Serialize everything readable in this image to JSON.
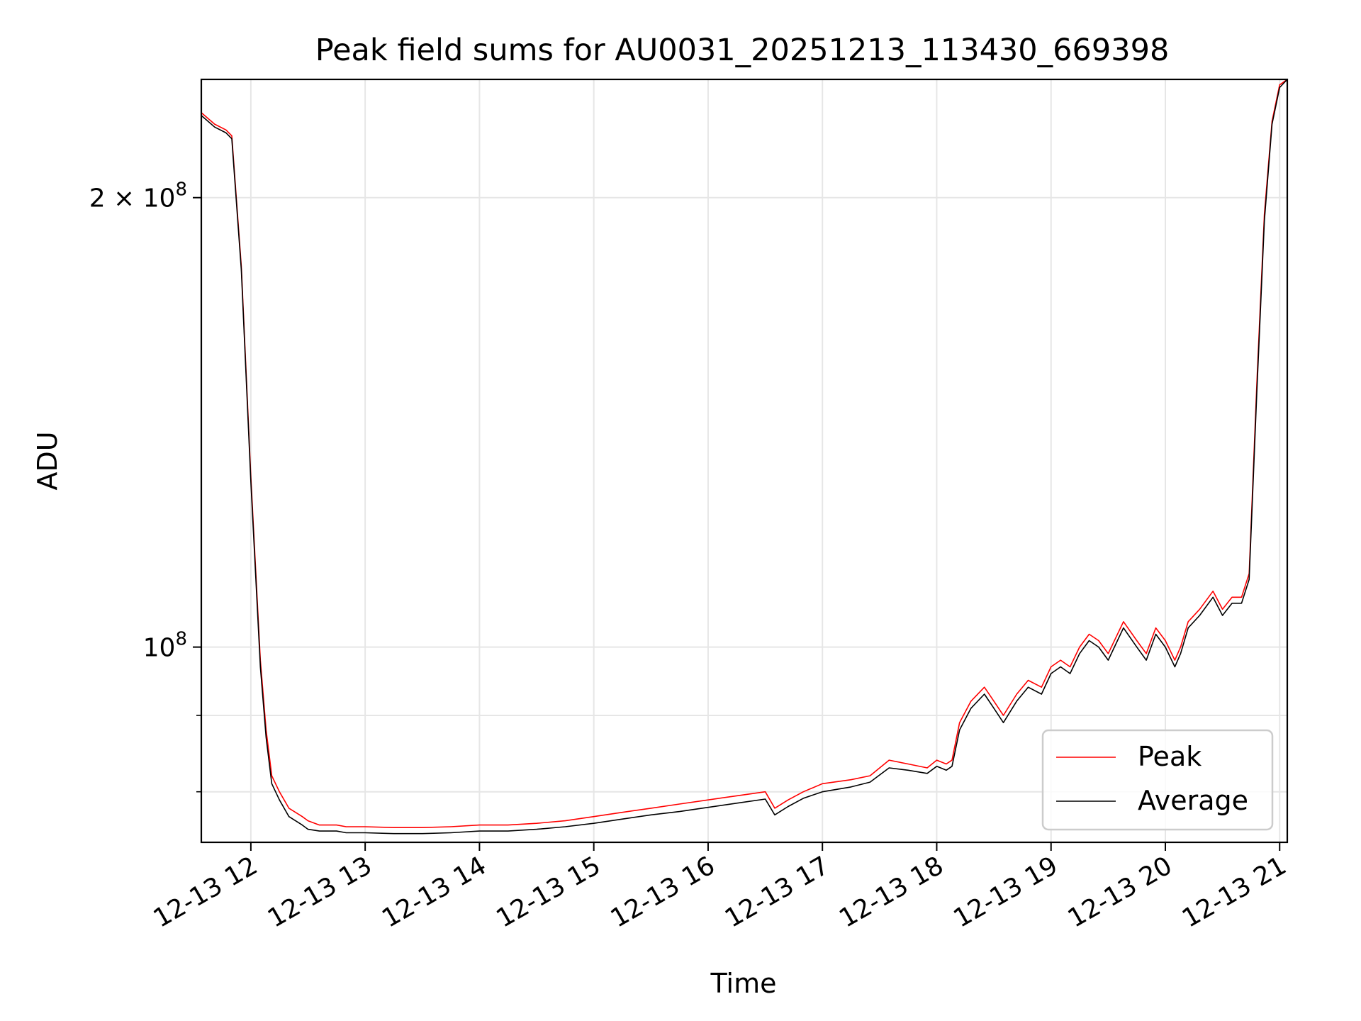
{
  "chart_data": {
    "type": "line",
    "title": "Peak field sums for AU0031_20251213_113430_669398",
    "xlabel": "Time",
    "ylabel": "ADU",
    "xlim": [
      "2025-12-13 11:34",
      "2025-12-13 21:04"
    ],
    "ylim": [
      74000000,
      240000000
    ],
    "yscale": "log",
    "x_ticks": [
      {
        "t": "2025-12-13 12:00",
        "label": "12-13 12"
      },
      {
        "t": "2025-12-13 13:00",
        "label": "12-13 13"
      },
      {
        "t": "2025-12-13 14:00",
        "label": "12-13 14"
      },
      {
        "t": "2025-12-13 15:00",
        "label": "12-13 15"
      },
      {
        "t": "2025-12-13 16:00",
        "label": "12-13 16"
      },
      {
        "t": "2025-12-13 17:00",
        "label": "12-13 17"
      },
      {
        "t": "2025-12-13 18:00",
        "label": "12-13 18"
      },
      {
        "t": "2025-12-13 19:00",
        "label": "12-13 19"
      },
      {
        "t": "2025-12-13 20:00",
        "label": "12-13 20"
      },
      {
        "t": "2025-12-13 21:00",
        "label": "12-13 21"
      }
    ],
    "y_major_ticks": [
      {
        "value": 100000000,
        "base": "10",
        "exp": "8"
      },
      {
        "value": 200000000,
        "base": "2 × 10",
        "exp": "8"
      }
    ],
    "y_minor_ticks": [
      60000000,
      70000000,
      80000000,
      90000000
    ],
    "grid": true,
    "legend_position": "lower-right",
    "series": [
      {
        "name": "Peak",
        "color": "#ff0000",
        "x": [
          "2025-12-13 11:34",
          "2025-12-13 11:41",
          "2025-12-13 11:47",
          "2025-12-13 11:50",
          "2025-12-13 11:55",
          "2025-12-13 12:00",
          "2025-12-13 12:05",
          "2025-12-13 12:08",
          "2025-12-13 12:11",
          "2025-12-13 12:15",
          "2025-12-13 12:20",
          "2025-12-13 12:27",
          "2025-12-13 12:30",
          "2025-12-13 12:36",
          "2025-12-13 12:45",
          "2025-12-13 12:50",
          "2025-12-13 13:00",
          "2025-12-13 13:15",
          "2025-12-13 13:30",
          "2025-12-13 13:45",
          "2025-12-13 14:00",
          "2025-12-13 14:15",
          "2025-12-13 14:30",
          "2025-12-13 14:45",
          "2025-12-13 15:00",
          "2025-12-13 15:15",
          "2025-12-13 15:30",
          "2025-12-13 15:45",
          "2025-12-13 16:00",
          "2025-12-13 16:15",
          "2025-12-13 16:30",
          "2025-12-13 16:35",
          "2025-12-13 16:42",
          "2025-12-13 16:50",
          "2025-12-13 17:00",
          "2025-12-13 17:15",
          "2025-12-13 17:25",
          "2025-12-13 17:35",
          "2025-12-13 17:45",
          "2025-12-13 17:55",
          "2025-12-13 18:00",
          "2025-12-13 18:05",
          "2025-12-13 18:08",
          "2025-12-13 18:12",
          "2025-12-13 18:18",
          "2025-12-13 18:25",
          "2025-12-13 18:30",
          "2025-12-13 18:35",
          "2025-12-13 18:42",
          "2025-12-13 18:48",
          "2025-12-13 18:55",
          "2025-12-13 19:00",
          "2025-12-13 19:05",
          "2025-12-13 19:10",
          "2025-12-13 19:15",
          "2025-12-13 19:20",
          "2025-12-13 19:25",
          "2025-12-13 19:30",
          "2025-12-13 19:38",
          "2025-12-13 19:45",
          "2025-12-13 19:50",
          "2025-12-13 19:55",
          "2025-12-13 20:00",
          "2025-12-13 20:05",
          "2025-12-13 20:08",
          "2025-12-13 20:12",
          "2025-12-13 20:18",
          "2025-12-13 20:25",
          "2025-12-13 20:30",
          "2025-12-13 20:35",
          "2025-12-13 20:40",
          "2025-12-13 20:44",
          "2025-12-13 20:48",
          "2025-12-13 20:52",
          "2025-12-13 20:56",
          "2025-12-13 21:00",
          "2025-12-13 21:04"
        ],
        "y": [
          228000000,
          224000000,
          222000000,
          220000000,
          180000000,
          130000000,
          98000000,
          88000000,
          82000000,
          80000000,
          78000000,
          77000000,
          76500000,
          76000000,
          76000000,
          75800000,
          75800000,
          75700000,
          75700000,
          75800000,
          76000000,
          76000000,
          76200000,
          76500000,
          77000000,
          77500000,
          78000000,
          78500000,
          79000000,
          79500000,
          80000000,
          78000000,
          79000000,
          80000000,
          81000000,
          81500000,
          82000000,
          84000000,
          83500000,
          83000000,
          84000000,
          83500000,
          84000000,
          89000000,
          92000000,
          94000000,
          92000000,
          90000000,
          93000000,
          95000000,
          94000000,
          97000000,
          98000000,
          97000000,
          100000000,
          102000000,
          101000000,
          99000000,
          104000000,
          101000000,
          99000000,
          103000000,
          101000000,
          98000000,
          100000000,
          104000000,
          106000000,
          109000000,
          106000000,
          108000000,
          108000000,
          112000000,
          150000000,
          195000000,
          225000000,
          238000000,
          240000000
        ]
      },
      {
        "name": "Average",
        "color": "#000000",
        "x": [
          "2025-12-13 11:34",
          "2025-12-13 11:41",
          "2025-12-13 11:47",
          "2025-12-13 11:50",
          "2025-12-13 11:55",
          "2025-12-13 12:00",
          "2025-12-13 12:05",
          "2025-12-13 12:08",
          "2025-12-13 12:11",
          "2025-12-13 12:15",
          "2025-12-13 12:20",
          "2025-12-13 12:27",
          "2025-12-13 12:30",
          "2025-12-13 12:36",
          "2025-12-13 12:45",
          "2025-12-13 12:50",
          "2025-12-13 13:00",
          "2025-12-13 13:15",
          "2025-12-13 13:30",
          "2025-12-13 13:45",
          "2025-12-13 14:00",
          "2025-12-13 14:15",
          "2025-12-13 14:30",
          "2025-12-13 14:45",
          "2025-12-13 15:00",
          "2025-12-13 15:15",
          "2025-12-13 15:30",
          "2025-12-13 15:45",
          "2025-12-13 16:00",
          "2025-12-13 16:15",
          "2025-12-13 16:30",
          "2025-12-13 16:35",
          "2025-12-13 16:42",
          "2025-12-13 16:50",
          "2025-12-13 17:00",
          "2025-12-13 17:15",
          "2025-12-13 17:25",
          "2025-12-13 17:35",
          "2025-12-13 17:45",
          "2025-12-13 17:55",
          "2025-12-13 18:00",
          "2025-12-13 18:05",
          "2025-12-13 18:08",
          "2025-12-13 18:12",
          "2025-12-13 18:18",
          "2025-12-13 18:25",
          "2025-12-13 18:30",
          "2025-12-13 18:35",
          "2025-12-13 18:42",
          "2025-12-13 18:48",
          "2025-12-13 18:55",
          "2025-12-13 19:00",
          "2025-12-13 19:05",
          "2025-12-13 19:10",
          "2025-12-13 19:15",
          "2025-12-13 19:20",
          "2025-12-13 19:25",
          "2025-12-13 19:30",
          "2025-12-13 19:38",
          "2025-12-13 19:45",
          "2025-12-13 19:50",
          "2025-12-13 19:55",
          "2025-12-13 20:00",
          "2025-12-13 20:05",
          "2025-12-13 20:08",
          "2025-12-13 20:12",
          "2025-12-13 20:18",
          "2025-12-13 20:25",
          "2025-12-13 20:30",
          "2025-12-13 20:35",
          "2025-12-13 20:40",
          "2025-12-13 20:44",
          "2025-12-13 20:48",
          "2025-12-13 20:52",
          "2025-12-13 20:56",
          "2025-12-13 21:00",
          "2025-12-13 21:04"
        ],
        "y": [
          227000000,
          223000000,
          221000000,
          219000000,
          179000000,
          129000000,
          97000000,
          87000000,
          81000000,
          79000000,
          77000000,
          76000000,
          75500000,
          75300000,
          75300000,
          75100000,
          75100000,
          75000000,
          75000000,
          75100000,
          75300000,
          75300000,
          75500000,
          75800000,
          76200000,
          76700000,
          77200000,
          77600000,
          78100000,
          78600000,
          79100000,
          77200000,
          78200000,
          79200000,
          80000000,
          80600000,
          81200000,
          83000000,
          82700000,
          82300000,
          83200000,
          82700000,
          83200000,
          88000000,
          91000000,
          93000000,
          91000000,
          89000000,
          92000000,
          94000000,
          93000000,
          96000000,
          97000000,
          96000000,
          99000000,
          101000000,
          100000000,
          98000000,
          103000000,
          100000000,
          98000000,
          102000000,
          100000000,
          97000000,
          99000000,
          103000000,
          105000000,
          108000000,
          105000000,
          107000000,
          107000000,
          111000000,
          148000000,
          193000000,
          224000000,
          237000000,
          240000000
        ]
      }
    ]
  }
}
